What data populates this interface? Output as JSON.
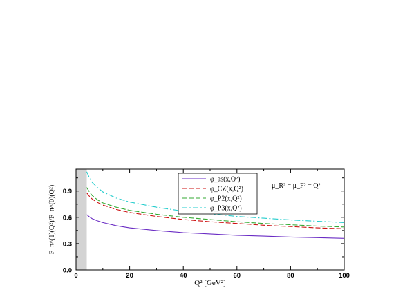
{
  "chart_data": {
    "type": "line",
    "xlabel": "Q² [GeV²]",
    "ylabel": "F_π^(1)(Q²)/F_π^(0)(Q²)",
    "xlim": [
      0,
      100
    ],
    "ylim": [
      0.0,
      1.15
    ],
    "xticks": [
      0,
      20,
      40,
      60,
      80,
      100
    ],
    "yticks": [
      0.0,
      0.3,
      0.6,
      0.9
    ],
    "xtick_labels": [
      "0",
      "20",
      "40",
      "60",
      "80",
      "100"
    ],
    "ytick_labels": [
      "0.0",
      "0.3",
      "0.6",
      "0.9"
    ],
    "shaded_region": [
      0,
      4
    ],
    "annotation": "μ_R² = μ_F² = Q²",
    "legend_position": "top-center",
    "series": [
      {
        "name": "φ_as(x,Q²)",
        "color": "#6a2cc4",
        "style": "solid",
        "x": [
          4,
          5,
          6,
          8,
          10,
          15,
          20,
          30,
          40,
          50,
          60,
          70,
          80,
          90,
          100
        ],
        "y": [
          0.63,
          0.605,
          0.585,
          0.56,
          0.54,
          0.505,
          0.48,
          0.45,
          0.425,
          0.41,
          0.395,
          0.385,
          0.375,
          0.368,
          0.36
        ]
      },
      {
        "name": "φ_CZ(x,Q²)",
        "color": "#cc1111",
        "style": "dashed",
        "x": [
          4,
          5,
          6,
          8,
          10,
          15,
          20,
          30,
          40,
          50,
          60,
          70,
          80,
          90,
          100
        ],
        "y": [
          0.88,
          0.84,
          0.81,
          0.77,
          0.74,
          0.69,
          0.655,
          0.61,
          0.575,
          0.55,
          0.53,
          0.51,
          0.495,
          0.48,
          0.47
        ]
      },
      {
        "name": "φ_P2(x,Q²)",
        "color": "#33aa33",
        "style": "dashed",
        "x": [
          4,
          5,
          6,
          8,
          10,
          15,
          20,
          30,
          40,
          50,
          60,
          70,
          80,
          90,
          100
        ],
        "y": [
          0.94,
          0.89,
          0.85,
          0.8,
          0.765,
          0.715,
          0.68,
          0.635,
          0.6,
          0.575,
          0.55,
          0.53,
          0.515,
          0.5,
          0.49
        ]
      },
      {
        "name": "φ_P3(x,Q²)",
        "color": "#22cccc",
        "style": "dashdot",
        "x": [
          4,
          5,
          6,
          8,
          10,
          15,
          20,
          30,
          40,
          50,
          60,
          70,
          80,
          90,
          100
        ],
        "y": [
          1.12,
          1.05,
          1.0,
          0.94,
          0.89,
          0.82,
          0.775,
          0.715,
          0.67,
          0.64,
          0.61,
          0.59,
          0.57,
          0.555,
          0.54
        ]
      }
    ]
  }
}
